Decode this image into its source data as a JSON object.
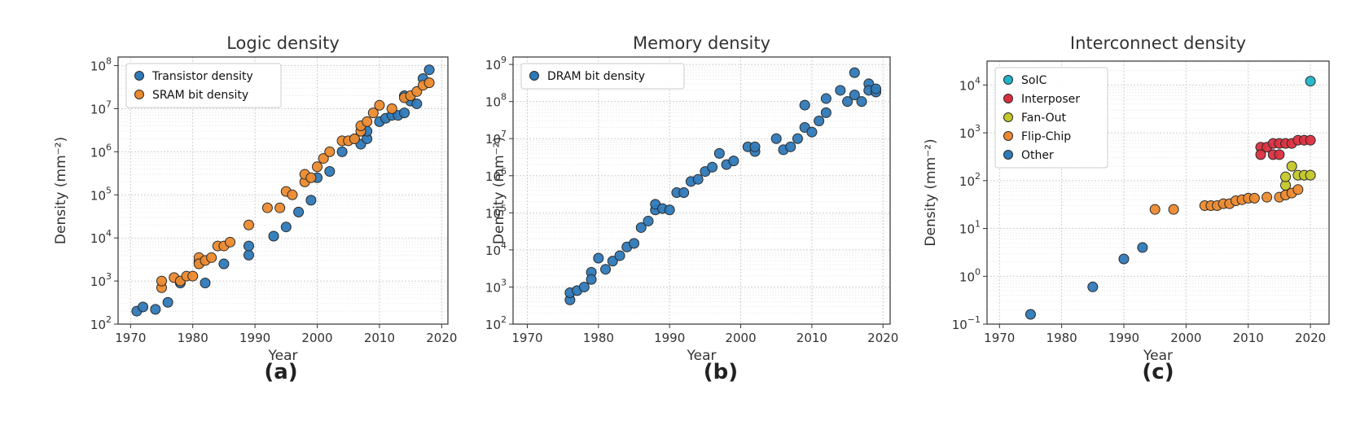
{
  "colors": {
    "transistor": "#2e79b8",
    "sram": "#ec8a2e",
    "dram": "#2e79b8",
    "soic": "#1fb4c9",
    "interposer": "#db2f3f",
    "fanout": "#c4c727",
    "flipchip": "#ec8a2e",
    "other": "#2e79b8"
  },
  "chart_data": [
    {
      "type": "scatter",
      "panel_label": "(a)",
      "title": "Logic density",
      "xlabel": "Year",
      "ylabel": "Density (mm⁻²)",
      "xlim": [
        1968,
        2021
      ],
      "ylim_log10": [
        2,
        8.2
      ],
      "y_scale": "log",
      "grid": true,
      "legend_position": "top-left",
      "x_ticks": [
        "1970",
        "1980",
        "1990",
        "2000",
        "2010",
        "2020"
      ],
      "y_ticks": [
        {
          "base": "10",
          "exp": "2"
        },
        {
          "base": "10",
          "exp": "3"
        },
        {
          "base": "10",
          "exp": "4"
        },
        {
          "base": "10",
          "exp": "5"
        },
        {
          "base": "10",
          "exp": "6"
        },
        {
          "base": "10",
          "exp": "7"
        },
        {
          "base": "10",
          "exp": "8"
        }
      ],
      "series": [
        {
          "name": "Transistor density",
          "color_key": "transistor",
          "points": [
            [
              1971,
              200
            ],
            [
              1972,
              250
            ],
            [
              1974,
              220
            ],
            [
              1976,
              320
            ],
            [
              1978,
              900
            ],
            [
              1981,
              2800
            ],
            [
              1982,
              900
            ],
            [
              1985,
              2500
            ],
            [
              1989,
              4000
            ],
            [
              1989,
              6500
            ],
            [
              1993,
              11000
            ],
            [
              1995,
              18000
            ],
            [
              1997,
              40000
            ],
            [
              1999,
              75000
            ],
            [
              2000,
              250000
            ],
            [
              2002,
              350000
            ],
            [
              2004,
              1000000
            ],
            [
              2006,
              2000000
            ],
            [
              2007,
              1500000
            ],
            [
              2008,
              2000000
            ],
            [
              2008,
              3000000
            ],
            [
              2010,
              5000000
            ],
            [
              2011,
              6000000
            ],
            [
              2012,
              7000000
            ],
            [
              2013,
              7000000
            ],
            [
              2014,
              20000000
            ],
            [
              2014,
              8000000
            ],
            [
              2015,
              15000000
            ],
            [
              2016,
              13000000
            ],
            [
              2017,
              50000000
            ],
            [
              2018,
              80000000
            ]
          ]
        },
        {
          "name": "SRAM bit density",
          "color_key": "sram",
          "points": [
            [
              1975,
              700
            ],
            [
              1975,
              1000
            ],
            [
              1977,
              1200
            ],
            [
              1978,
              1000
            ],
            [
              1979,
              1300
            ],
            [
              1980,
              1300
            ],
            [
              1981,
              3500
            ],
            [
              1981,
              2500
            ],
            [
              1982,
              3000
            ],
            [
              1983,
              3500
            ],
            [
              1984,
              6500
            ],
            [
              1985,
              6500
            ],
            [
              1986,
              8000
            ],
            [
              1989,
              20000
            ],
            [
              1992,
              50000
            ],
            [
              1994,
              50000
            ],
            [
              1995,
              120000
            ],
            [
              1996,
              100000
            ],
            [
              1998,
              200000
            ],
            [
              1998,
              300000
            ],
            [
              1999,
              250000
            ],
            [
              2000,
              450000
            ],
            [
              2001,
              700000
            ],
            [
              2002,
              1000000
            ],
            [
              2004,
              1800000
            ],
            [
              2005,
              1800000
            ],
            [
              2006,
              2000000
            ],
            [
              2007,
              3000000
            ],
            [
              2007,
              4000000
            ],
            [
              2008,
              5000000
            ],
            [
              2009,
              8000000
            ],
            [
              2010,
              12000000
            ],
            [
              2012,
              10000000
            ],
            [
              2014,
              18000000
            ],
            [
              2015,
              20000000
            ],
            [
              2016,
              25000000
            ],
            [
              2017,
              35000000
            ],
            [
              2018,
              40000000
            ]
          ]
        }
      ]
    },
    {
      "type": "scatter",
      "panel_label": "(b)",
      "title": "Memory density",
      "xlabel": "Year",
      "ylabel": "Density (mm⁻²)",
      "xlim": [
        1968,
        2021
      ],
      "ylim_log10": [
        2,
        9.2
      ],
      "y_scale": "log",
      "grid": true,
      "legend_position": "top-left",
      "x_ticks": [
        "1970",
        "1980",
        "1990",
        "2000",
        "2010",
        "2020"
      ],
      "y_ticks": [
        {
          "base": "10",
          "exp": "2"
        },
        {
          "base": "10",
          "exp": "3"
        },
        {
          "base": "10",
          "exp": "4"
        },
        {
          "base": "10",
          "exp": "5"
        },
        {
          "base": "10",
          "exp": "6"
        },
        {
          "base": "10",
          "exp": "7"
        },
        {
          "base": "10",
          "exp": "8"
        },
        {
          "base": "10",
          "exp": "9"
        }
      ],
      "series": [
        {
          "name": "DRAM bit density",
          "color_key": "dram",
          "points": [
            [
              1976,
              450
            ],
            [
              1976,
              700
            ],
            [
              1977,
              800
            ],
            [
              1978,
              1000
            ],
            [
              1979,
              2500
            ],
            [
              1979,
              1600
            ],
            [
              1980,
              6000
            ],
            [
              1981,
              3000
            ],
            [
              1982,
              5000
            ],
            [
              1983,
              7000
            ],
            [
              1984,
              12000
            ],
            [
              1985,
              15000
            ],
            [
              1986,
              40000
            ],
            [
              1987,
              60000
            ],
            [
              1988,
              120000
            ],
            [
              1988,
              170000
            ],
            [
              1989,
              130000
            ],
            [
              1990,
              120000
            ],
            [
              1991,
              350000
            ],
            [
              1992,
              350000
            ],
            [
              1993,
              700000
            ],
            [
              1994,
              800000
            ],
            [
              1995,
              1300000
            ],
            [
              1996,
              1700000
            ],
            [
              1997,
              4000000
            ],
            [
              1998,
              2000000
            ],
            [
              1999,
              2500000
            ],
            [
              2001,
              6000000
            ],
            [
              2002,
              4500000
            ],
            [
              2002,
              6000000
            ],
            [
              2005,
              10000000
            ],
            [
              2006,
              5000000
            ],
            [
              2007,
              6000000
            ],
            [
              2008,
              10000000
            ],
            [
              2009,
              20000000
            ],
            [
              2009,
              80000000
            ],
            [
              2010,
              15000000
            ],
            [
              2011,
              30000000
            ],
            [
              2012,
              50000000
            ],
            [
              2012,
              120000000
            ],
            [
              2014,
              200000000
            ],
            [
              2015,
              100000000
            ],
            [
              2016,
              600000000
            ],
            [
              2016,
              150000000
            ],
            [
              2017,
              100000000
            ],
            [
              2018,
              300000000
            ],
            [
              2018,
              200000000
            ],
            [
              2019,
              180000000
            ],
            [
              2019,
              220000000
            ]
          ]
        }
      ]
    },
    {
      "type": "scatter",
      "panel_label": "(c)",
      "title": "Interconnect density",
      "xlabel": "Year",
      "ylabel": "Density (mm⁻²)",
      "xlim": [
        1968,
        2023
      ],
      "ylim_log10": [
        -1,
        4.5
      ],
      "y_scale": "log",
      "grid": true,
      "legend_position": "top-left",
      "x_ticks": [
        "1970",
        "1980",
        "1990",
        "2000",
        "2010",
        "2020"
      ],
      "y_ticks": [
        {
          "base": "10",
          "exp": "−1"
        },
        {
          "base": "10",
          "exp": "0"
        },
        {
          "base": "10",
          "exp": "1"
        },
        {
          "base": "10",
          "exp": "2"
        },
        {
          "base": "10",
          "exp": "3"
        },
        {
          "base": "10",
          "exp": "4"
        }
      ],
      "series": [
        {
          "name": "SoIC",
          "color_key": "soic",
          "points": [
            [
              2020,
              12000
            ]
          ]
        },
        {
          "name": "Interposer",
          "color_key": "interposer",
          "points": [
            [
              2012,
              500
            ],
            [
              2012,
              350
            ],
            [
              2013,
              500
            ],
            [
              2014,
              600
            ],
            [
              2014,
              350
            ],
            [
              2015,
              350
            ],
            [
              2015,
              600
            ],
            [
              2016,
              600
            ],
            [
              2017,
              600
            ],
            [
              2018,
              700
            ],
            [
              2019,
              700
            ],
            [
              2020,
              700
            ]
          ]
        },
        {
          "name": "Fan-Out",
          "color_key": "fanout",
          "points": [
            [
              2016,
              80
            ],
            [
              2016,
              120
            ],
            [
              2017,
              200
            ],
            [
              2018,
              130
            ],
            [
              2019,
              130
            ],
            [
              2020,
              130
            ]
          ]
        },
        {
          "name": "Flip-Chip",
          "color_key": "flipchip",
          "points": [
            [
              1995,
              25
            ],
            [
              1998,
              25
            ],
            [
              2003,
              30
            ],
            [
              2004,
              30
            ],
            [
              2005,
              30
            ],
            [
              2006,
              33
            ],
            [
              2007,
              33
            ],
            [
              2008,
              38
            ],
            [
              2009,
              40
            ],
            [
              2010,
              43
            ],
            [
              2011,
              43
            ],
            [
              2013,
              45
            ],
            [
              2015,
              45
            ],
            [
              2016,
              50
            ],
            [
              2017,
              55
            ],
            [
              2018,
              65
            ]
          ]
        },
        {
          "name": "Other",
          "color_key": "other",
          "points": [
            [
              1975,
              0.16
            ],
            [
              1985,
              0.6
            ],
            [
              1990,
              2.3
            ],
            [
              1993,
              4
            ]
          ]
        }
      ]
    }
  ]
}
